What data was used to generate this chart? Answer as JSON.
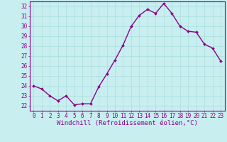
{
  "x": [
    0,
    1,
    2,
    3,
    4,
    5,
    6,
    7,
    8,
    9,
    10,
    11,
    12,
    13,
    14,
    15,
    16,
    17,
    18,
    19,
    20,
    21,
    22,
    23
  ],
  "y": [
    24.0,
    23.7,
    23.0,
    22.5,
    23.0,
    22.1,
    22.2,
    22.2,
    23.9,
    25.2,
    26.6,
    28.1,
    30.0,
    31.1,
    31.7,
    31.3,
    32.3,
    31.3,
    30.0,
    29.5,
    29.4,
    28.2,
    27.8,
    26.5
  ],
  "line_color": "#8B008B",
  "marker": "D",
  "marker_size": 2.0,
  "bg_color": "#c8eef0",
  "grid_color": "#aadddd",
  "xlabel": "Windchill (Refroidissement éolien,°C)",
  "ylim": [
    21.5,
    32.5
  ],
  "xlim": [
    -0.5,
    23.5
  ],
  "yticks": [
    22,
    23,
    24,
    25,
    26,
    27,
    28,
    29,
    30,
    31,
    32
  ],
  "xticks": [
    0,
    1,
    2,
    3,
    4,
    5,
    6,
    7,
    8,
    9,
    10,
    11,
    12,
    13,
    14,
    15,
    16,
    17,
    18,
    19,
    20,
    21,
    22,
    23
  ],
  "tick_fontsize": 5.5,
  "xlabel_fontsize": 6.5,
  "line_width": 1.0,
  "spine_color": "#8B008B",
  "tick_color": "#8B008B",
  "label_color": "#8B008B"
}
